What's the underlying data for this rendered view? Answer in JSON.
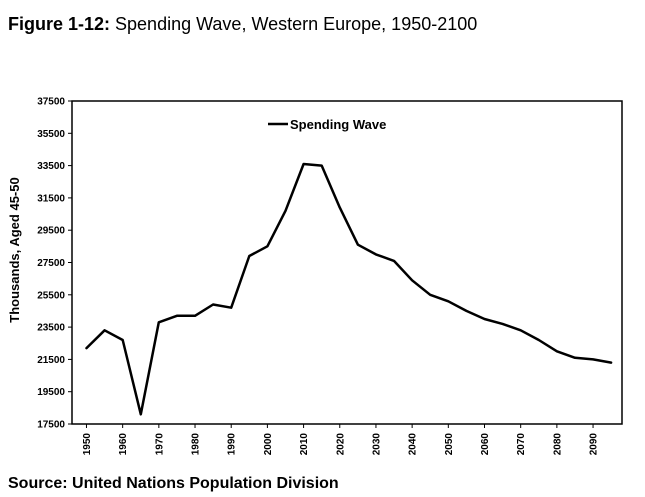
{
  "header": {
    "figure_label": "Figure 1-12:",
    "title": " Spending Wave,  Western Europe, 1950-2100"
  },
  "footer": {
    "source": "Source: United Nations Population Division"
  },
  "chart_data": {
    "type": "line",
    "ylabel": "Thousands, Aged 45-50",
    "ylim": [
      17500,
      37500
    ],
    "yticks": [
      17500,
      19500,
      21500,
      23500,
      25500,
      27500,
      29500,
      31500,
      33500,
      35500,
      37500
    ],
    "xlim": [
      1946,
      2098
    ],
    "xticks": [
      1950,
      1960,
      1970,
      1980,
      1990,
      2000,
      2010,
      2020,
      2030,
      2040,
      2050,
      2060,
      2070,
      2080,
      2090
    ],
    "legend_position": "top-center",
    "grid": false,
    "series": [
      {
        "name": "Spending Wave",
        "color": "#000000",
        "x": [
          1950,
          1955,
          1960,
          1965,
          1970,
          1975,
          1980,
          1985,
          1990,
          1995,
          2000,
          2005,
          2010,
          2015,
          2020,
          2025,
          2030,
          2035,
          2040,
          2045,
          2050,
          2055,
          2060,
          2065,
          2070,
          2075,
          2080,
          2085,
          2090,
          2095
        ],
        "y": [
          22200,
          23300,
          22700,
          18100,
          23800,
          24200,
          24200,
          24900,
          24700,
          27900,
          28500,
          30700,
          33600,
          33500,
          30900,
          28600,
          28000,
          27600,
          26400,
          25500,
          25100,
          24500,
          24000,
          23700,
          23300,
          22700,
          22000,
          21600,
          21500,
          21300
        ]
      }
    ]
  }
}
